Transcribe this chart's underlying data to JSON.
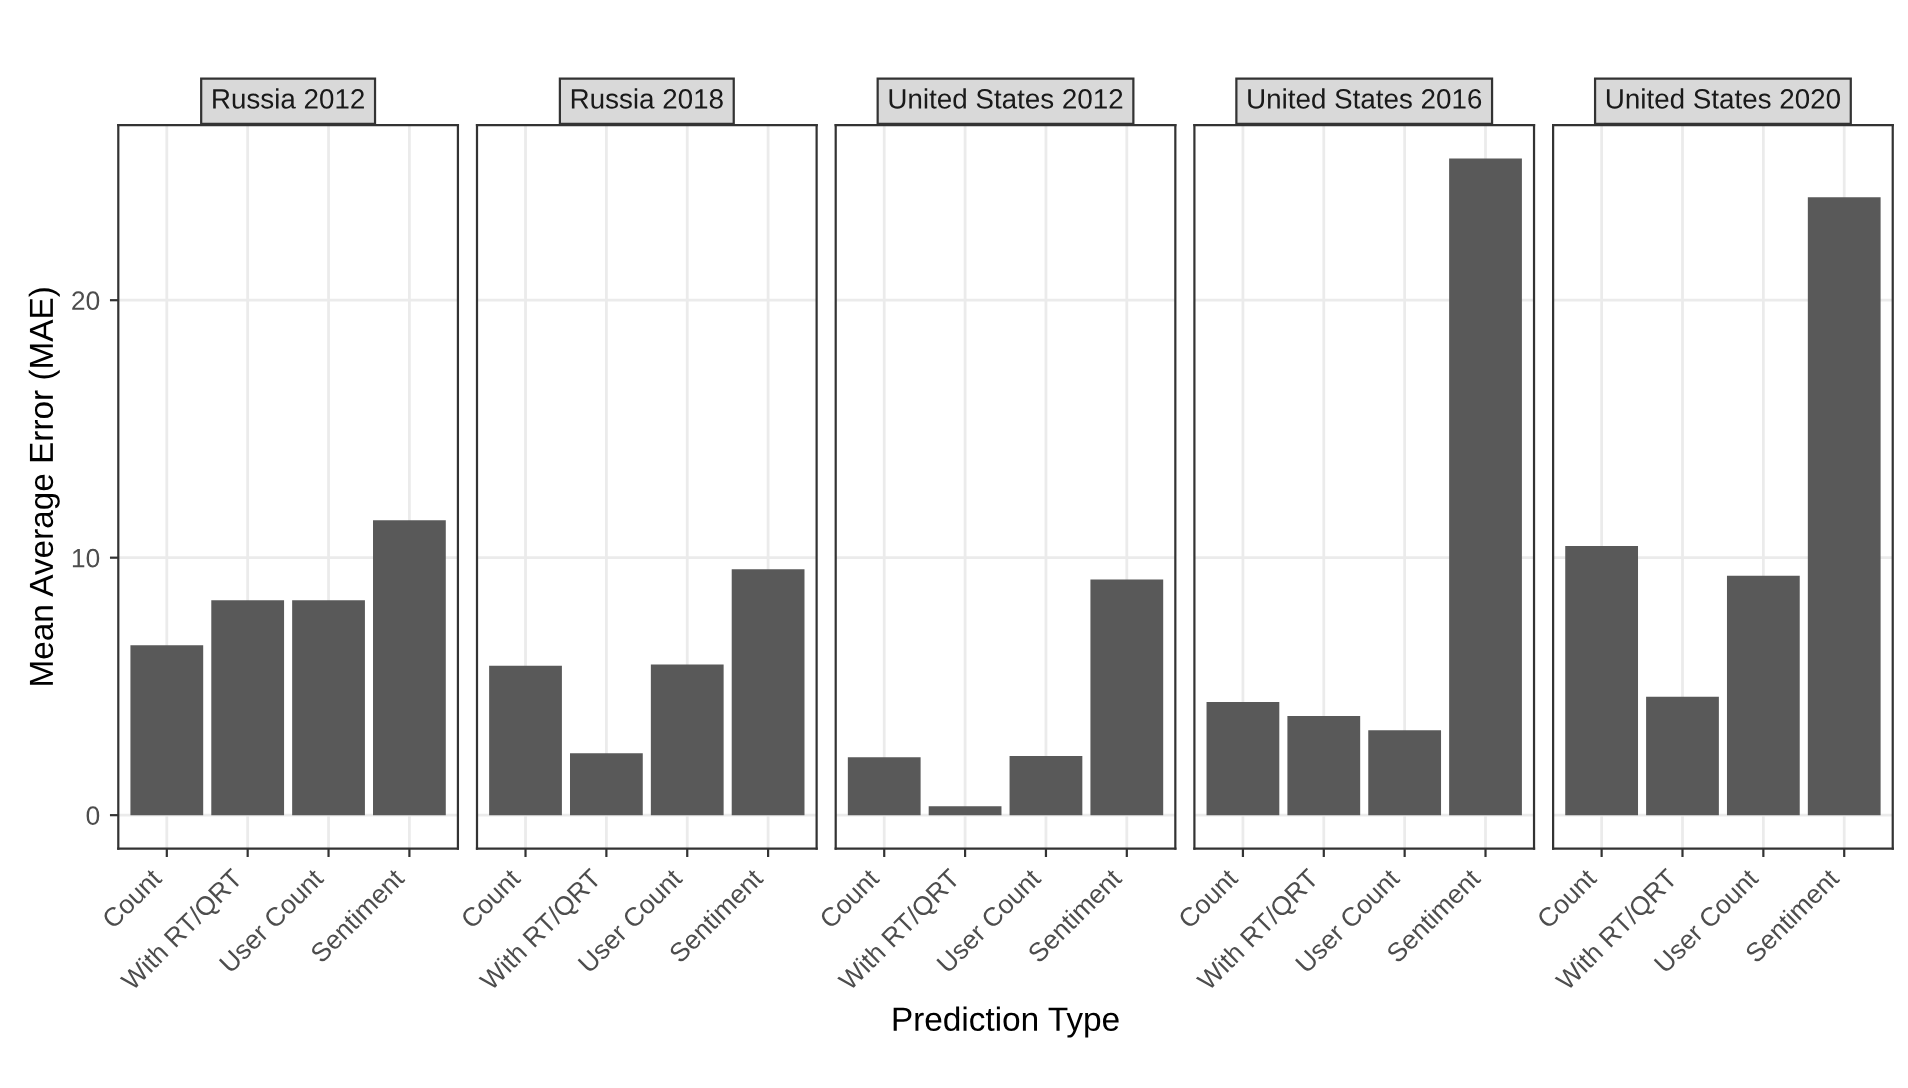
{
  "chart_data": [
    {
      "type": "bar",
      "title": "Russia 2012",
      "ylabel": "Mean Average Error (MAE)",
      "categories": [
        "Count",
        "With RT/QRT",
        "User Count",
        "Sentiment"
      ],
      "values": [
        6.6,
        8.35,
        8.35,
        11.45
      ],
      "color": "#595959",
      "ylim": [
        -1.3,
        26.8
      ],
      "yticks": [
        0,
        10,
        20
      ],
      "grid": true
    },
    {
      "type": "bar",
      "title": "Russia 2018",
      "categories": [
        "Count",
        "With RT/QRT",
        "User Count",
        "Sentiment"
      ],
      "values": [
        5.8,
        2.4,
        5.85,
        9.55
      ],
      "color": "#595959",
      "ylim": [
        -1.3,
        26.8
      ],
      "yticks": [
        0,
        10,
        20
      ],
      "grid": true,
      "tick_labels": "x"
    },
    {
      "type": "bar",
      "title": "United States 2012",
      "xlabel": "Prediction Type",
      "categories": [
        "Count",
        "With RT/QRT",
        "User Count",
        "Sentiment"
      ],
      "values": [
        2.25,
        0.35,
        2.3,
        9.15
      ],
      "color": "#595959",
      "ylim": [
        -1.3,
        26.8
      ],
      "yticks": [
        0,
        10,
        20
      ],
      "grid": true,
      "tick_labels": "x"
    },
    {
      "type": "bar",
      "title": "United States 2016",
      "categories": [
        "Count",
        "With RT/QRT",
        "User Count",
        "Sentiment"
      ],
      "values": [
        4.4,
        3.85,
        3.3,
        25.5
      ],
      "color": "#595959",
      "ylim": [
        -1.3,
        26.8
      ],
      "yticks": [
        0,
        10,
        20
      ],
      "grid": true,
      "tick_labels": "x"
    },
    {
      "type": "bar",
      "title": "United States 2020",
      "categories": [
        "Count",
        "With RT/QRT",
        "User Count",
        "Sentiment"
      ],
      "values": [
        10.45,
        4.6,
        9.3,
        24.0
      ],
      "color": "#595959",
      "ylim": [
        -1.3,
        26.8
      ],
      "yticks": [
        0,
        10,
        20
      ],
      "grid": true,
      "tick_labels": "x"
    }
  ]
}
